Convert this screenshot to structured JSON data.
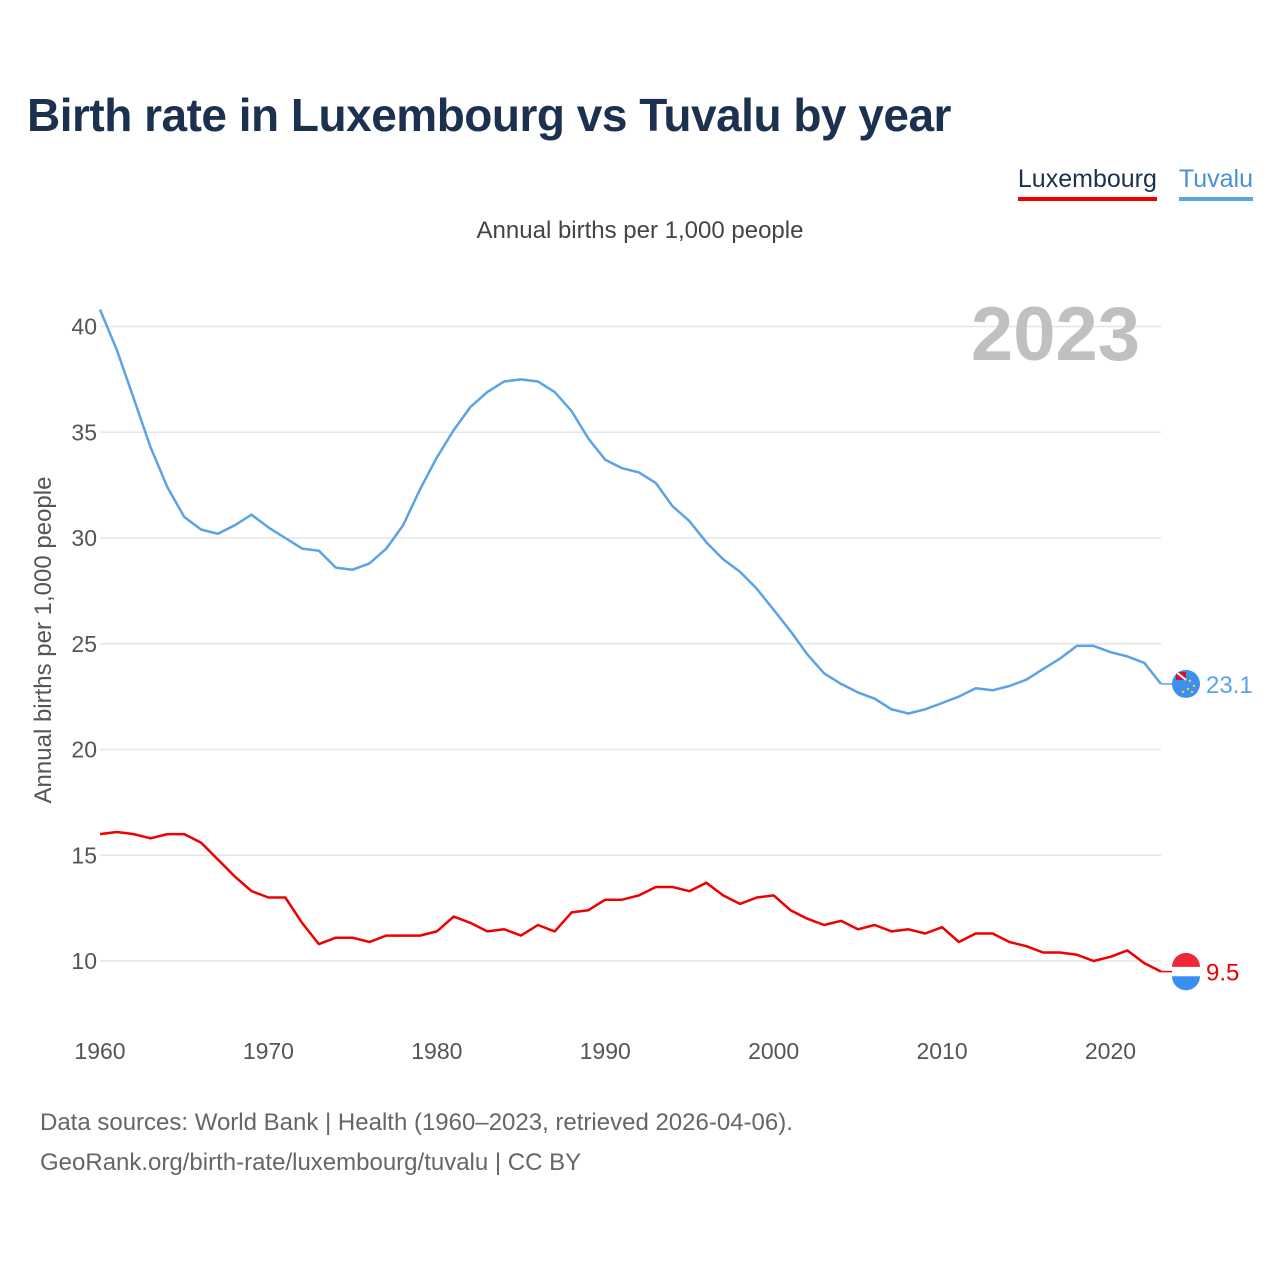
{
  "header": {
    "title": "Birth rate in Luxembourg vs Tuvalu by year",
    "subtitle": "Annual births per 1,000 people"
  },
  "legend": {
    "items": [
      {
        "label": "Luxembourg",
        "color": "#ee0000"
      },
      {
        "label": "Tuvalu",
        "color": "#5aa3e6"
      }
    ]
  },
  "footer": {
    "sources": "Data sources: World Bank | Health (1960–2023, retrieved 2026-04-06).",
    "url": "GeoRank.org/birth-rate/luxembourg/tuvalu | CC BY"
  },
  "chart_data": {
    "type": "line",
    "title": "Birth rate in Luxembourg vs Tuvalu by year",
    "ylabel": "Annual births per 1,000 people",
    "xlabel": "",
    "year_label": "2023",
    "xlim": [
      1960,
      2023
    ],
    "ylim": [
      8,
      42
    ],
    "x_ticks": [
      1960,
      1970,
      1980,
      1990,
      2000,
      2010,
      2020
    ],
    "y_ticks": [
      10,
      15,
      20,
      25,
      30,
      35,
      40
    ],
    "grid": true,
    "x": [
      1960,
      1961,
      1962,
      1963,
      1964,
      1965,
      1966,
      1967,
      1968,
      1969,
      1970,
      1971,
      1972,
      1973,
      1974,
      1975,
      1976,
      1977,
      1978,
      1979,
      1980,
      1981,
      1982,
      1983,
      1984,
      1985,
      1986,
      1987,
      1988,
      1989,
      1990,
      1991,
      1992,
      1993,
      1994,
      1995,
      1996,
      1997,
      1998,
      1999,
      2000,
      2001,
      2002,
      2003,
      2004,
      2005,
      2006,
      2007,
      2008,
      2009,
      2010,
      2011,
      2012,
      2013,
      2014,
      2015,
      2016,
      2017,
      2018,
      2019,
      2020,
      2021,
      2022,
      2023
    ],
    "series": [
      {
        "name": "Tuvalu",
        "color": "#5aa3e6",
        "end_label": "23.1",
        "values": [
          40.8,
          38.9,
          36.6,
          34.3,
          32.4,
          31.0,
          30.4,
          30.2,
          30.6,
          31.1,
          30.5,
          30.0,
          29.5,
          29.4,
          28.6,
          28.5,
          28.8,
          29.5,
          30.6,
          32.3,
          33.8,
          35.1,
          36.2,
          36.9,
          37.4,
          37.5,
          37.4,
          36.9,
          36.0,
          34.7,
          33.7,
          33.3,
          33.1,
          32.6,
          31.5,
          30.8,
          29.8,
          29.0,
          28.4,
          27.6,
          26.6,
          25.6,
          24.5,
          23.6,
          23.1,
          22.7,
          22.4,
          21.9,
          21.7,
          21.9,
          22.2,
          22.5,
          22.9,
          22.8,
          23.0,
          23.3,
          23.8,
          24.3,
          24.9,
          24.9,
          24.6,
          24.4,
          24.1,
          23.1
        ]
      },
      {
        "name": "Luxembourg",
        "color": "#ee0000",
        "end_label": "9.5",
        "values": [
          16.0,
          16.1,
          16.0,
          15.8,
          16.0,
          16.0,
          15.6,
          14.8,
          14.0,
          13.3,
          13.0,
          13.0,
          11.8,
          10.8,
          11.1,
          11.1,
          10.9,
          11.2,
          11.2,
          11.2,
          11.4,
          12.1,
          11.8,
          11.4,
          11.5,
          11.2,
          11.7,
          11.4,
          12.3,
          12.4,
          12.9,
          12.9,
          13.1,
          13.5,
          13.5,
          13.3,
          13.7,
          13.1,
          12.7,
          13.0,
          13.1,
          12.4,
          12.0,
          11.7,
          11.9,
          11.5,
          11.7,
          11.4,
          11.5,
          11.3,
          11.6,
          10.9,
          11.3,
          11.3,
          10.9,
          10.7,
          10.4,
          10.4,
          10.3,
          10.0,
          10.2,
          10.5,
          9.9,
          9.5
        ]
      }
    ]
  }
}
